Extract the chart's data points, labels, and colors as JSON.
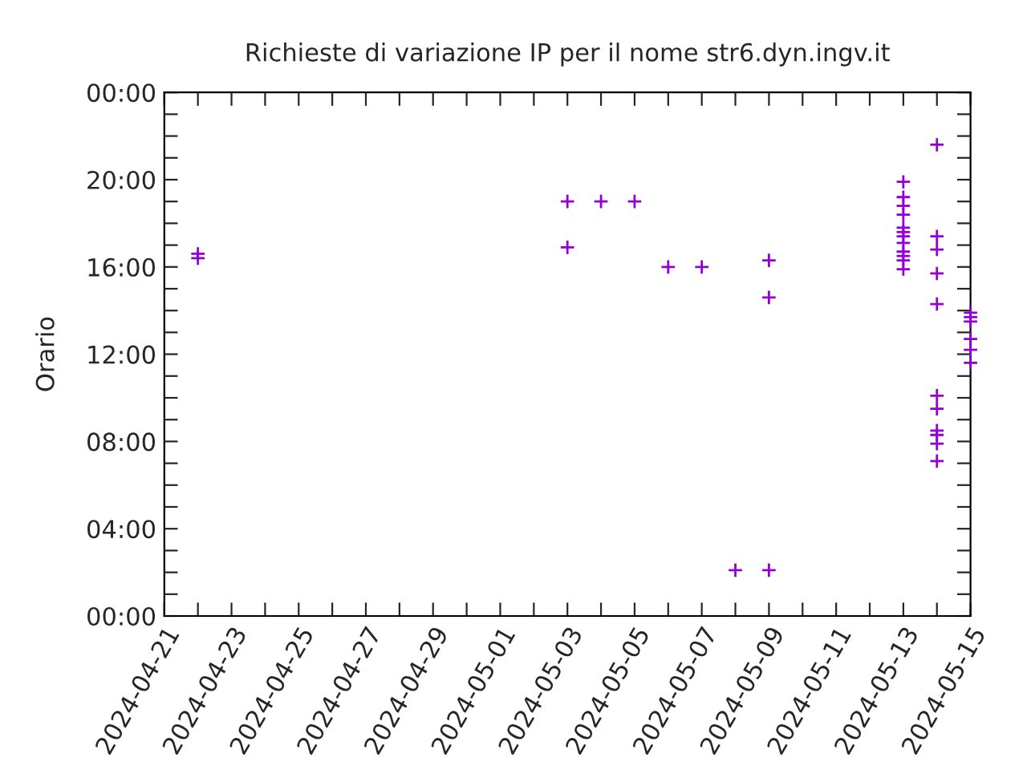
{
  "chart_data": {
    "type": "scatter",
    "title": "Richieste di variazione IP per il nome str6.dyn.ingv.it",
    "ylabel": "Orario",
    "marker": "cross",
    "grid": false,
    "series": [
      {
        "color": "#9400d3",
        "x": [
          "2024-04-22",
          "2024-04-22",
          "2024-05-03",
          "2024-05-03",
          "2024-05-04",
          "2024-05-05",
          "2024-05-06",
          "2024-05-07",
          "2024-05-08",
          "2024-05-09",
          "2024-05-09",
          "2024-05-09",
          "2024-05-13",
          "2024-05-13",
          "2024-05-13",
          "2024-05-13",
          "2024-05-13",
          "2024-05-13",
          "2024-05-13",
          "2024-05-13",
          "2024-05-13",
          "2024-05-13",
          "2024-05-13",
          "2024-05-13",
          "2024-05-14",
          "2024-05-14",
          "2024-05-14",
          "2024-05-14",
          "2024-05-14",
          "2024-05-14",
          "2024-05-14",
          "2024-05-14",
          "2024-05-14",
          "2024-05-14",
          "2024-05-14",
          "2024-05-15",
          "2024-05-15",
          "2024-05-15",
          "2024-05-15",
          "2024-05-15",
          "2024-05-15"
        ],
        "values": [
          16.6,
          16.4,
          19.0,
          16.9,
          19.0,
          19.0,
          16.0,
          16.0,
          2.1,
          16.3,
          14.6,
          2.1,
          19.9,
          19.2,
          18.8,
          18.4,
          17.8,
          17.6,
          17.4,
          17.1,
          16.7,
          16.5,
          16.3,
          15.9,
          21.6,
          17.4,
          16.8,
          15.7,
          14.3,
          10.1,
          9.5,
          8.5,
          8.3,
          7.9,
          7.1,
          13.9,
          13.7,
          13.5,
          12.7,
          12.2,
          11.6
        ]
      }
    ],
    "xlim": [
      "2024-04-21",
      "2024-05-15"
    ],
    "xticks": [
      {
        "value": "2024-04-21",
        "label": "2024-04-21"
      },
      {
        "value": "2024-04-22",
        "label": null
      },
      {
        "value": "2024-04-23",
        "label": "2024-04-23"
      },
      {
        "value": "2024-04-24",
        "label": null
      },
      {
        "value": "2024-04-25",
        "label": "2024-04-25"
      },
      {
        "value": "2024-04-26",
        "label": null
      },
      {
        "value": "2024-04-27",
        "label": "2024-04-27"
      },
      {
        "value": "2024-04-28",
        "label": null
      },
      {
        "value": "2024-04-29",
        "label": "2024-04-29"
      },
      {
        "value": "2024-04-30",
        "label": null
      },
      {
        "value": "2024-05-01",
        "label": "2024-05-01"
      },
      {
        "value": "2024-05-02",
        "label": null
      },
      {
        "value": "2024-05-03",
        "label": "2024-05-03"
      },
      {
        "value": "2024-05-04",
        "label": null
      },
      {
        "value": "2024-05-05",
        "label": "2024-05-05"
      },
      {
        "value": "2024-05-06",
        "label": null
      },
      {
        "value": "2024-05-07",
        "label": "2024-05-07"
      },
      {
        "value": "2024-05-08",
        "label": null
      },
      {
        "value": "2024-05-09",
        "label": "2024-05-09"
      },
      {
        "value": "2024-05-10",
        "label": null
      },
      {
        "value": "2024-05-11",
        "label": "2024-05-11"
      },
      {
        "value": "2024-05-12",
        "label": null
      },
      {
        "value": "2024-05-13",
        "label": "2024-05-13"
      },
      {
        "value": "2024-05-14",
        "label": null
      },
      {
        "value": "2024-05-15",
        "label": "2024-05-15"
      }
    ],
    "ylim": [
      0,
      24
    ],
    "yticks": [
      {
        "value": 0,
        "label": "00:00"
      },
      {
        "value": 1,
        "label": null
      },
      {
        "value": 2,
        "label": null
      },
      {
        "value": 3,
        "label": null
      },
      {
        "value": 4,
        "label": "04:00"
      },
      {
        "value": 5,
        "label": null
      },
      {
        "value": 6,
        "label": null
      },
      {
        "value": 7,
        "label": null
      },
      {
        "value": 8,
        "label": "08:00"
      },
      {
        "value": 9,
        "label": null
      },
      {
        "value": 10,
        "label": null
      },
      {
        "value": 11,
        "label": null
      },
      {
        "value": 12,
        "label": "12:00"
      },
      {
        "value": 13,
        "label": null
      },
      {
        "value": 14,
        "label": null
      },
      {
        "value": 15,
        "label": null
      },
      {
        "value": 16,
        "label": "16:00"
      },
      {
        "value": 17,
        "label": null
      },
      {
        "value": 18,
        "label": null
      },
      {
        "value": 19,
        "label": null
      },
      {
        "value": 20,
        "label": "20:00"
      },
      {
        "value": 21,
        "label": null
      },
      {
        "value": 22,
        "label": null
      },
      {
        "value": 23,
        "label": null
      },
      {
        "value": 24,
        "label": "00:00"
      }
    ]
  }
}
